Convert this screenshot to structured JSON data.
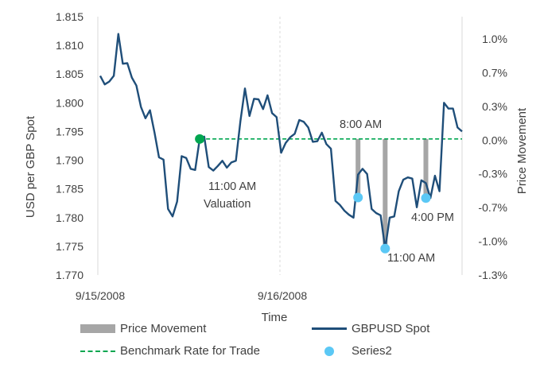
{
  "chart_data": {
    "type": "line",
    "xlabel": "Time",
    "ylabel": "USD per GBP Spot",
    "y2label": "Price Movement",
    "ylim": [
      1.77,
      1.815
    ],
    "y_ticks": [
      "1.815",
      "1.810",
      "1.805",
      "1.800",
      "1.795",
      "1.790",
      "1.785",
      "1.780",
      "1.775",
      "1.770"
    ],
    "y2_ticks": [
      "1.0%",
      "0.7%",
      "0.3%",
      "0.0%",
      "-0.3%",
      "-0.7%",
      "-1.0%",
      "-1.3%"
    ],
    "x_ticks": [
      "9/15/2008",
      "9/16/2008"
    ],
    "benchmark_rate": 1.7937,
    "series": [
      {
        "name": "GBPUSD Spot",
        "color": "#1f4e79",
        "values": [
          1.8047,
          1.8032,
          1.8037,
          1.8047,
          1.812,
          1.8068,
          1.8069,
          1.8044,
          1.803,
          1.7993,
          1.7973,
          1.7987,
          1.7948,
          1.7905,
          1.7901,
          1.7815,
          1.7802,
          1.7828,
          1.7907,
          1.7904,
          1.7885,
          1.7883,
          1.7937,
          1.7941,
          1.7888,
          1.7882,
          1.789,
          1.7899,
          1.7887,
          1.7896,
          1.7899,
          1.7968,
          1.8025,
          1.7977,
          1.8007,
          1.8006,
          1.7989,
          1.8013,
          1.7982,
          1.7975,
          1.7913,
          1.793,
          1.794,
          1.7946,
          1.797,
          1.7967,
          1.7957,
          1.7932,
          1.7933,
          1.7948,
          1.7928,
          1.792,
          1.7829,
          1.7822,
          1.7812,
          1.7805,
          1.78,
          1.7875,
          1.7885,
          1.7876,
          1.7815,
          1.7808,
          1.7804,
          1.7746,
          1.78,
          1.7802,
          1.7846,
          1.7866,
          1.787,
          1.7868,
          1.7818,
          1.7865,
          1.786,
          1.7834,
          1.7873,
          1.7846,
          1.8,
          1.799,
          1.799,
          1.7957,
          1.795
        ]
      },
      {
        "name": "Price Movement",
        "color": "#a6a6a6",
        "bars": [
          {
            "index": 57,
            "from": 1.7937,
            "to": 1.7835
          },
          {
            "index": 63,
            "from": 1.7937,
            "to": 1.7746
          },
          {
            "index": 72,
            "from": 1.7937,
            "to": 1.7834
          }
        ]
      },
      {
        "name": "Benchmark Rate for Trade",
        "color": "#00a650",
        "value": 1.7937
      },
      {
        "name": "Series2",
        "color": "#5bc8f5",
        "points": [
          {
            "index": 57,
            "value": 1.7835
          },
          {
            "index": 63,
            "value": 1.7746
          },
          {
            "index": 72,
            "value": 1.7834
          }
        ]
      }
    ],
    "valuation_point": {
      "index": 22,
      "value": 1.7937,
      "color": "#00a650"
    },
    "annotations": {
      "valuation_line1": "11:00 AM",
      "valuation_line2": "Valuation",
      "t800": "8:00 AM",
      "t1100": "11:00 AM",
      "t400": "4:00 PM"
    }
  },
  "legend": {
    "price_movement": "Price Movement",
    "gbpusd_spot": "GBPUSD Spot",
    "benchmark": "Benchmark Rate for Trade",
    "series2": "Series2"
  }
}
